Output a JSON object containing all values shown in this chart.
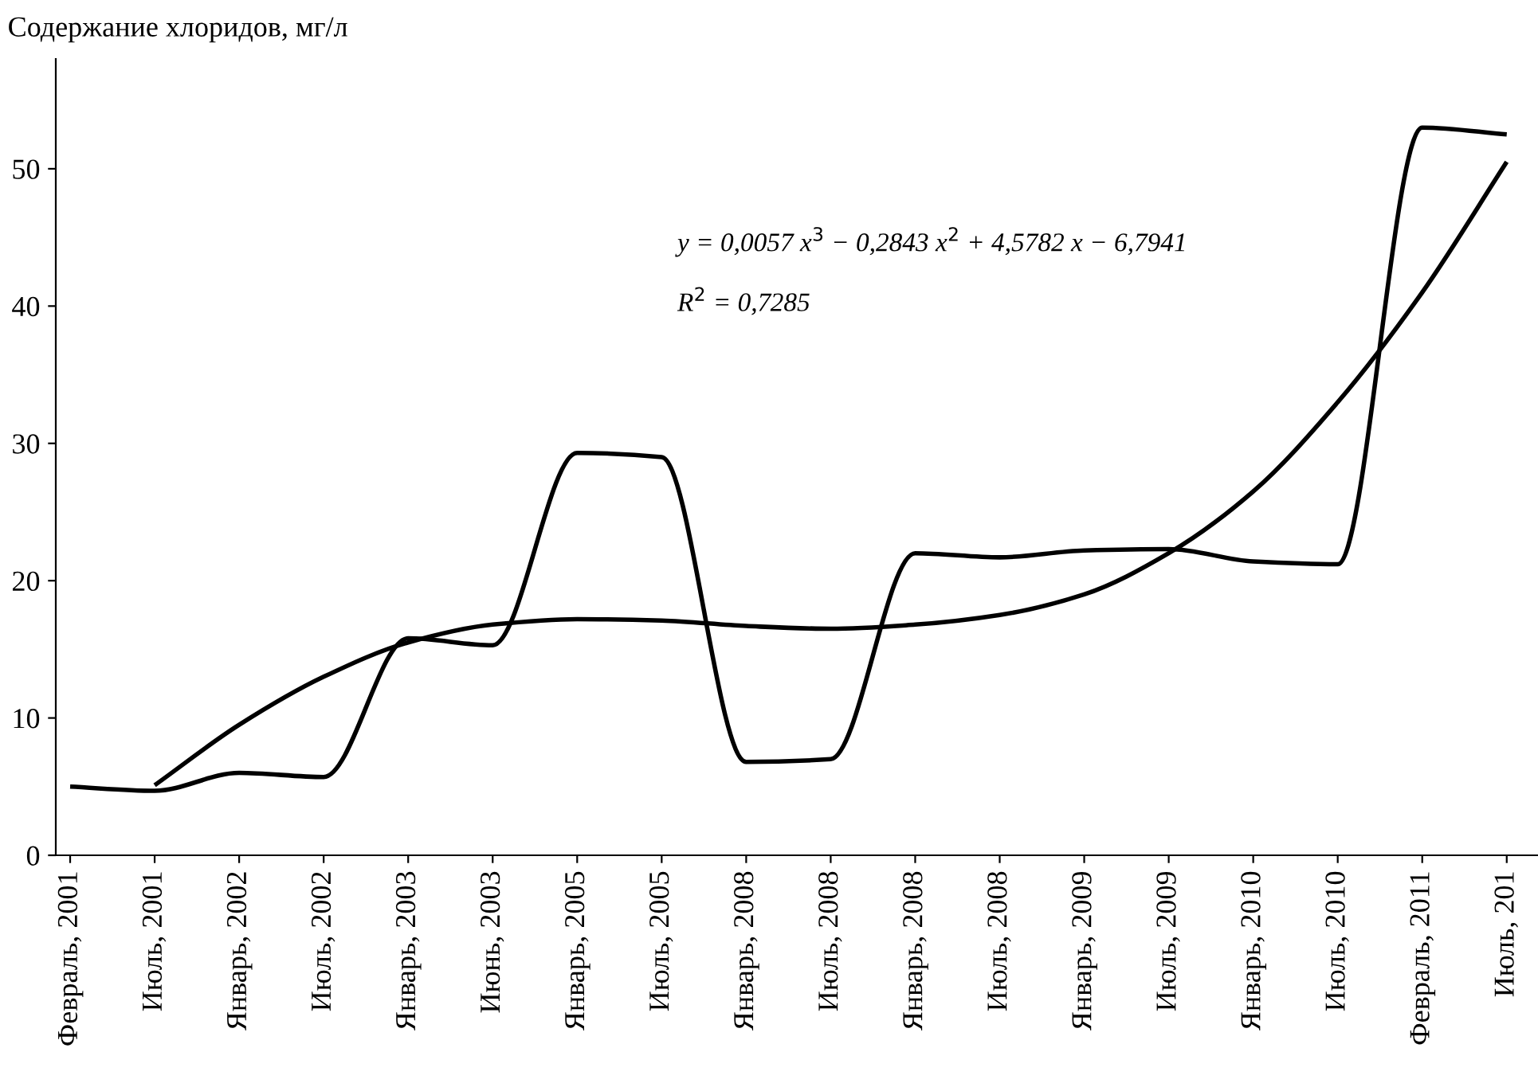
{
  "chart_data": {
    "type": "line",
    "ylabel": "Содержание хлоридов, мг/л",
    "categories": [
      "Февраль, 2001",
      "Июль, 2001",
      "Январь, 2002",
      "Июль, 2002",
      "Январь, 2003",
      "Июнь, 2003",
      "Январь, 2005",
      "Июль, 2005",
      "Январь, 2008",
      "Июль, 2008",
      "Январь, 2008",
      "Июль, 2008",
      "Январь, 2009",
      "Июль, 2009",
      "Январь, 2010",
      "Июль, 2010",
      "Февраль, 2011",
      "Июль, 201"
    ],
    "series": [
      {
        "color": "#000000",
        "values": [
          5,
          4.7,
          6,
          5.7,
          15.8,
          15.3,
          29.3,
          29,
          6.8,
          7,
          22,
          21.7,
          22.2,
          22.3,
          21.4,
          21.2,
          53,
          52.5
        ]
      },
      {
        "type": "line",
        "color": "#000000",
        "values": [
          null,
          5.1,
          9.5,
          13,
          15.5,
          16.8,
          17.2,
          17.1,
          16.7,
          16.5,
          16.8,
          17.5,
          19,
          22,
          26.5,
          33,
          41,
          50.5
        ]
      }
    ],
    "ylim": [
      0,
      58
    ],
    "yticks": [
      0,
      10,
      20,
      30,
      40,
      50
    ],
    "grid": false,
    "legend": false,
    "marker": "none",
    "line_style": "solid",
    "annotations": [
      "y = 0,0057 x$^{3}$ − 0,2843 x$^{2}$ + 4,5782 x − 6,7941",
      "R$^{2}$ = 0,7285"
    ]
  }
}
